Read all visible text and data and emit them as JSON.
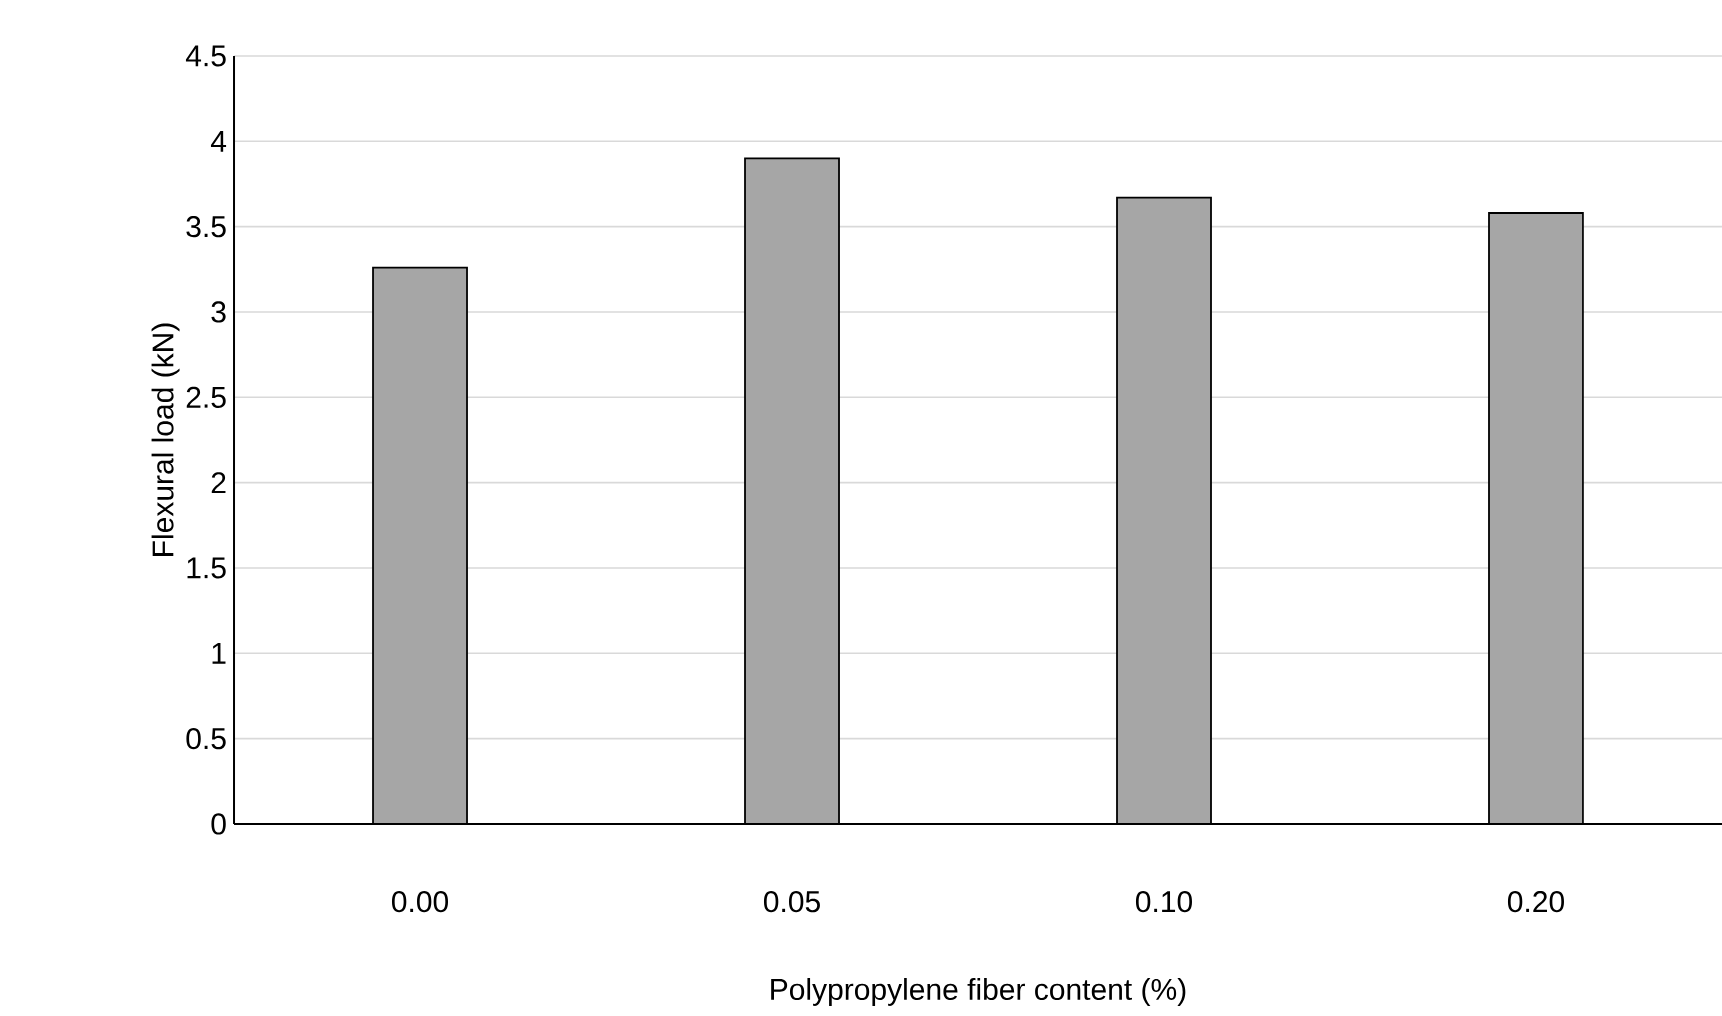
{
  "chart_data": {
    "type": "bar",
    "xlabel": "Polypropylene  fiber content (%)",
    "ylabel": "Flexural load (kN)",
    "categories": [
      "0.00",
      "0.05",
      "0.10",
      "0.20"
    ],
    "values": [
      3.26,
      3.9,
      3.67,
      3.58
    ],
    "color": "#a6a6a6",
    "ylim": [
      0,
      4.5
    ],
    "yticks": [
      0,
      0.5,
      1,
      1.5,
      2,
      2.5,
      3,
      3.5,
      4,
      4.5
    ],
    "grid": "y"
  }
}
